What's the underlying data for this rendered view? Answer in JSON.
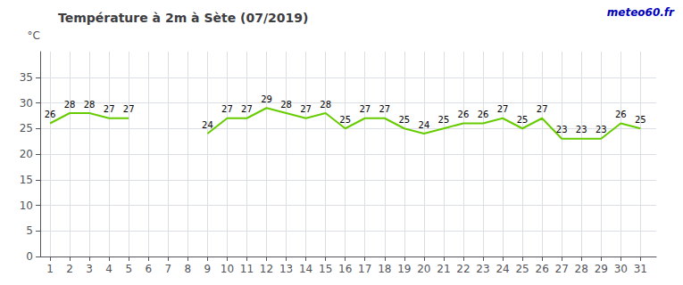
{
  "chart_data": {
    "type": "line",
    "title": "Température à 2m à Sète (07/2019)",
    "y_label": "°C",
    "annotations": [
      {
        "text": "meteo60.fr",
        "color": "#0000bb"
      }
    ],
    "x": [
      1,
      2,
      3,
      4,
      5,
      6,
      7,
      8,
      9,
      10,
      11,
      12,
      13,
      14,
      15,
      16,
      17,
      18,
      19,
      20,
      21,
      22,
      23,
      24,
      25,
      26,
      27,
      28,
      29,
      30,
      31
    ],
    "values": [
      26,
      28,
      28,
      27,
      27,
      null,
      null,
      null,
      24,
      27,
      27,
      29,
      28,
      27,
      28,
      25,
      27,
      27,
      25,
      24,
      25,
      26,
      26,
      27,
      25,
      27,
      23,
      23,
      23,
      26,
      25
    ],
    "color": "#66cc00",
    "xlim": [
      0.5,
      31.8
    ],
    "xticks": [
      1,
      2,
      3,
      4,
      5,
      6,
      7,
      8,
      9,
      10,
      11,
      12,
      13,
      14,
      15,
      16,
      17,
      18,
      19,
      20,
      21,
      22,
      23,
      24,
      25,
      26,
      27,
      28,
      29,
      30,
      31
    ],
    "ylim": [
      0,
      40
    ],
    "yticks": [
      0,
      5,
      10,
      15,
      20,
      25,
      30,
      35
    ],
    "grid": true,
    "data_labels": true
  }
}
